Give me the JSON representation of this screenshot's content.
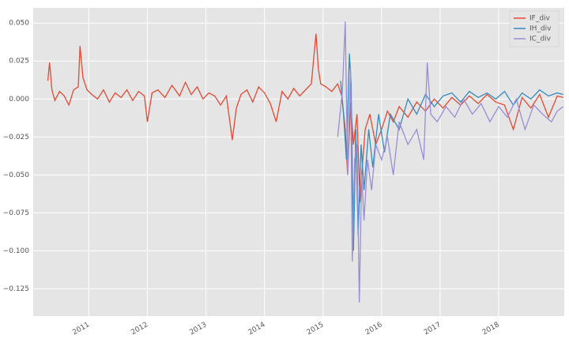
{
  "chart_data": {
    "type": "line",
    "xlim": [
      2010.05,
      2019.12
    ],
    "xticks": [
      2011,
      2012,
      2013,
      2014,
      2015,
      2016,
      2017,
      2018
    ],
    "ylim": [
      -0.143,
      0.06
    ],
    "yticks": [
      {
        "value": 0.05,
        "label": "0.050"
      },
      {
        "value": 0.025,
        "label": "0.025"
      },
      {
        "value": 0,
        "label": "0.000"
      },
      {
        "value": -0.025,
        "label": "−0.025"
      },
      {
        "value": -0.05,
        "label": "−0.050"
      },
      {
        "value": -0.075,
        "label": "−0.075"
      },
      {
        "value": -0.1,
        "label": "−0.100"
      },
      {
        "value": -0.125,
        "label": "−0.125"
      }
    ],
    "grid": true,
    "legend": "upper-right",
    "series": [
      {
        "name": "IF_div",
        "color": "#E24A33",
        "x": [
          2010.3,
          2010.33,
          2010.37,
          2010.42,
          2010.5,
          2010.58,
          2010.66,
          2010.74,
          2010.82,
          2010.85,
          2010.9,
          2010.97,
          2011.05,
          2011.15,
          2011.25,
          2011.35,
          2011.45,
          2011.55,
          2011.65,
          2011.75,
          2011.85,
          2011.95,
          2012.0,
          2012.08,
          2012.18,
          2012.3,
          2012.42,
          2012.55,
          2012.65,
          2012.75,
          2012.85,
          2012.95,
          2013.05,
          2013.15,
          2013.25,
          2013.35,
          2013.45,
          2013.52,
          2013.6,
          2013.7,
          2013.8,
          2013.9,
          2014.0,
          2014.1,
          2014.2,
          2014.3,
          2014.4,
          2014.5,
          2014.6,
          2014.7,
          2014.8,
          2014.88,
          2014.92,
          2014.96,
          2015.05,
          2015.15,
          2015.25,
          2015.32,
          2015.38,
          2015.42,
          2015.47,
          2015.52,
          2015.58,
          2015.63,
          2015.67,
          2015.72,
          2015.8,
          2015.9,
          2016.0,
          2016.1,
          2016.2,
          2016.3,
          2016.45,
          2016.6,
          2016.75,
          2016.9,
          2017.05,
          2017.2,
          2017.35,
          2017.5,
          2017.65,
          2017.8,
          2017.95,
          2018.1,
          2018.25,
          2018.4,
          2018.55,
          2018.7,
          2018.85,
          2019.0,
          2019.1
        ],
        "values": [
          0.012,
          0.024,
          0.006,
          -0.001,
          0.005,
          0.002,
          -0.004,
          0.006,
          0.008,
          0.035,
          0.014,
          0.006,
          0.003,
          0.0,
          0.006,
          -0.002,
          0.004,
          0.001,
          0.006,
          -0.001,
          0.005,
          0.002,
          -0.015,
          0.004,
          0.006,
          0.001,
          0.009,
          0.002,
          0.011,
          0.003,
          0.008,
          0.0,
          0.004,
          0.002,
          -0.004,
          0.002,
          -0.027,
          -0.006,
          0.003,
          0.006,
          -0.002,
          0.008,
          0.004,
          -0.003,
          -0.015,
          0.005,
          0.0,
          0.007,
          0.002,
          0.006,
          0.01,
          0.043,
          0.02,
          0.01,
          0.008,
          0.005,
          0.01,
          0.002,
          -0.02,
          -0.05,
          -0.002,
          -0.03,
          -0.01,
          -0.068,
          -0.045,
          -0.02,
          -0.01,
          -0.03,
          -0.02,
          -0.008,
          -0.015,
          -0.005,
          -0.012,
          -0.002,
          -0.008,
          0.0,
          -0.006,
          0.001,
          -0.004,
          0.002,
          -0.003,
          0.003,
          -0.002,
          -0.004,
          -0.02,
          0.001,
          -0.006,
          0.003,
          -0.012,
          0.002,
          0.001
        ]
      },
      {
        "name": "IH_div",
        "color": "#348ABD",
        "x": [
          2015.3,
          2015.35,
          2015.4,
          2015.45,
          2015.48,
          2015.52,
          2015.56,
          2015.6,
          2015.65,
          2015.7,
          2015.78,
          2015.85,
          2015.95,
          2016.05,
          2016.15,
          2016.3,
          2016.45,
          2016.6,
          2016.75,
          2016.9,
          2017.05,
          2017.2,
          2017.35,
          2017.5,
          2017.65,
          2017.8,
          2017.95,
          2018.1,
          2018.25,
          2018.4,
          2018.55,
          2018.7,
          2018.85,
          2019.0,
          2019.1
        ],
        "values": [
          0.012,
          -0.01,
          -0.04,
          0.03,
          0.01,
          -0.1,
          -0.02,
          -0.09,
          -0.03,
          -0.06,
          -0.02,
          -0.045,
          -0.01,
          -0.035,
          -0.01,
          -0.02,
          0.0,
          -0.01,
          0.003,
          -0.005,
          0.002,
          0.004,
          -0.002,
          0.005,
          0.001,
          0.004,
          0.0,
          0.005,
          -0.004,
          0.004,
          0.0,
          0.006,
          0.002,
          0.004,
          0.003
        ]
      },
      {
        "name": "IC_div",
        "color": "#988ED5",
        "x": [
          2015.25,
          2015.33,
          2015.38,
          2015.42,
          2015.47,
          2015.5,
          2015.54,
          2015.58,
          2015.62,
          2015.66,
          2015.7,
          2015.76,
          2015.83,
          2015.9,
          2016.0,
          2016.1,
          2016.2,
          2016.3,
          2016.45,
          2016.6,
          2016.72,
          2016.78,
          2016.84,
          2016.95,
          2017.1,
          2017.25,
          2017.4,
          2017.55,
          2017.7,
          2017.85,
          2018.0,
          2018.15,
          2018.3,
          2018.45,
          2018.6,
          2018.75,
          2018.9,
          2019.0,
          2019.1
        ],
        "values": [
          -0.025,
          0.005,
          0.051,
          -0.05,
          0.02,
          -0.107,
          -0.04,
          -0.03,
          -0.134,
          -0.05,
          -0.08,
          -0.04,
          -0.06,
          -0.03,
          -0.04,
          -0.025,
          -0.05,
          -0.015,
          -0.03,
          -0.02,
          -0.04,
          0.024,
          -0.01,
          -0.015,
          -0.005,
          -0.012,
          0.0,
          -0.01,
          -0.003,
          -0.015,
          -0.005,
          -0.012,
          0.0,
          -0.02,
          -0.004,
          -0.01,
          -0.015,
          -0.008,
          -0.005
        ]
      }
    ]
  }
}
